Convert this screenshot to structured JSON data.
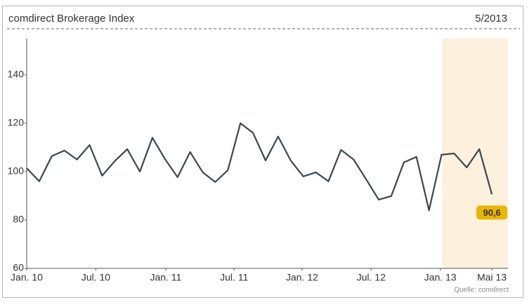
{
  "chart_data": {
    "type": "line",
    "title": "comdirect Brokerage Index",
    "date": "5/2013",
    "source": "Quelle: comdirect",
    "series": [
      {
        "color": "#3a4750",
        "values": [
          101.4,
          96,
          106.4,
          108.7,
          105,
          111,
          98.3,
          104.3,
          109.3,
          100,
          114,
          105.2,
          97.7,
          108.1,
          99.7,
          95.7,
          100.6,
          120,
          116,
          104.6,
          114.5,
          104.6,
          98,
          99.7,
          96,
          109,
          105,
          96.8,
          88.4,
          89.9,
          103.8,
          106.1,
          84,
          107,
          107.5,
          101.7,
          109.3,
          90.6
        ],
        "value_labels": [
          null,
          null,
          null,
          null,
          null,
          null,
          null,
          null,
          null,
          null,
          null,
          null,
          null,
          null,
          null,
          null,
          null,
          null,
          null,
          null,
          null,
          null,
          null,
          null,
          null,
          null,
          null,
          null,
          null,
          null,
          null,
          null,
          null,
          null,
          null,
          null,
          null,
          "90,6"
        ]
      }
    ],
    "xlim": [
      0,
      37
    ],
    "xticks": [
      {
        "value": 0,
        "label": "Jan. 10"
      },
      {
        "value": 5.5,
        "label": "Jul. 10"
      },
      {
        "value": 11.06,
        "label": "Jan. 11"
      },
      {
        "value": 16.5,
        "label": "Jul. 11"
      },
      {
        "value": 21.9,
        "label": "Jan. 12"
      },
      {
        "value": 27.4,
        "label": "Jul. 12"
      },
      {
        "value": 32.9,
        "label": "Jan. 13"
      },
      {
        "value": 37,
        "label": "Mai 13"
      }
    ],
    "ylim": [
      60,
      155
    ],
    "yticks": [
      60,
      80,
      100,
      120,
      140
    ],
    "highlight": {
      "range": [
        33.07,
        38.3
      ],
      "color": "#fdf0dc"
    },
    "label_color": "#eab400",
    "grid": false
  }
}
